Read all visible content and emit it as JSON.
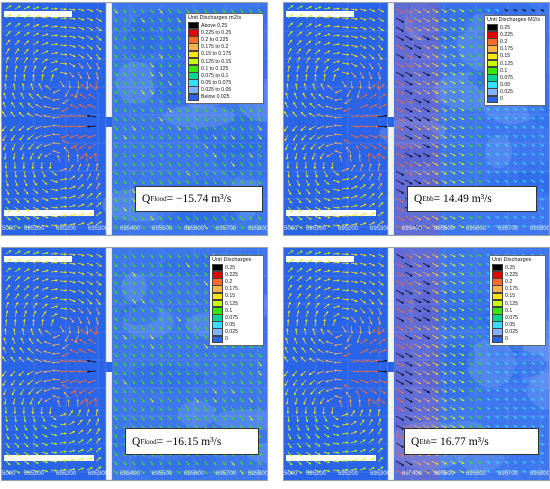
{
  "panels": [
    {
      "id": "top-left",
      "legend": {
        "title": "Unit Discharges m2/s",
        "items": [
          {
            "label": "Above 0.25",
            "color": "#000000"
          },
          {
            "label": "0.225 to 0.25",
            "color": "#e00000"
          },
          {
            "label": "0.2 to 0.225",
            "color": "#ff6a2a"
          },
          {
            "label": "0.175 to 0.2",
            "color": "#ffb347"
          },
          {
            "label": "0.15 to 0.175",
            "color": "#ffe600"
          },
          {
            "label": "0.125 to 0.15",
            "color": "#c8ff00"
          },
          {
            "label": "0.1 to 0.125",
            "color": "#39e600"
          },
          {
            "label": "0.075 to 0.1",
            "color": "#00d68f"
          },
          {
            "label": "0.05 to 0.075",
            "color": "#35e0ff"
          },
          {
            "label": "0.025 to 0.05",
            "color": "#7fb2ff"
          },
          {
            "label": "Below 0.025",
            "color": "#2a64e8"
          }
        ]
      },
      "q_sym": "Q",
      "q_sub": "Flood",
      "q_text": " = −15.74 m³/s",
      "ticks": [
        "5000",
        "695100",
        "695200",
        "695300",
        "695400",
        "695500",
        "695600",
        "695700",
        "695800"
      ]
    },
    {
      "id": "top-right",
      "legend": {
        "title": "Unit Discharges M2/s",
        "items": [
          {
            "label": "0.25",
            "color": "#000000"
          },
          {
            "label": "0.225",
            "color": "#e00000"
          },
          {
            "label": "0.2",
            "color": "#ff6a2a"
          },
          {
            "label": "0.175",
            "color": "#ffb347"
          },
          {
            "label": "0.15",
            "color": "#ffe600"
          },
          {
            "label": "0.125",
            "color": "#c8ff00"
          },
          {
            "label": "0.1",
            "color": "#39e600"
          },
          {
            "label": "0.075",
            "color": "#00d68f"
          },
          {
            "label": "0.05",
            "color": "#35e0ff"
          },
          {
            "label": "0.025",
            "color": "#7fb2ff"
          },
          {
            "label": "0",
            "color": "#2a64e8"
          }
        ]
      },
      "q_sym": "Q",
      "q_sub": "Ebb",
      "q_text": " = 14.49 m³/s",
      "ticks": [
        "5000",
        "695100",
        "695200",
        "695300",
        "695400",
        "695500",
        "695600",
        "695700",
        "695800"
      ]
    },
    {
      "id": "bottom-left",
      "legend": {
        "title": "Unit Discharges",
        "items": [
          {
            "label": "0.25",
            "color": "#000000"
          },
          {
            "label": "0.225",
            "color": "#e00000"
          },
          {
            "label": "0.2",
            "color": "#ff6a2a"
          },
          {
            "label": "0.175",
            "color": "#ffb347"
          },
          {
            "label": "0.15",
            "color": "#ffe600"
          },
          {
            "label": "0.125",
            "color": "#c8ff00"
          },
          {
            "label": "0.1",
            "color": "#39e600"
          },
          {
            "label": "0.075",
            "color": "#00d68f"
          },
          {
            "label": "0.05",
            "color": "#35e0ff"
          },
          {
            "label": "0.025",
            "color": "#7fb2ff"
          },
          {
            "label": "0",
            "color": "#2a64e8"
          }
        ]
      },
      "q_sym": "Q",
      "q_sub": "Flood",
      "q_text": " = −16.15 m³/s",
      "ticks": [
        "5000",
        "695100",
        "695200",
        "695300",
        "695400",
        "695500",
        "695600",
        "695700",
        "695800"
      ]
    },
    {
      "id": "bottom-right",
      "legend": {
        "title": "Unit Discharges",
        "items": [
          {
            "label": "0.25",
            "color": "#000000"
          },
          {
            "label": "0.225",
            "color": "#e00000"
          },
          {
            "label": "0.2",
            "color": "#ff6a2a"
          },
          {
            "label": "0.175",
            "color": "#ffb347"
          },
          {
            "label": "0.15",
            "color": "#ffe600"
          },
          {
            "label": "0.125",
            "color": "#c8ff00"
          },
          {
            "label": "0.1",
            "color": "#39e600"
          },
          {
            "label": "0.075",
            "color": "#00d68f"
          },
          {
            "label": "0.05",
            "color": "#35e0ff"
          },
          {
            "label": "0.025",
            "color": "#7fb2ff"
          },
          {
            "label": "0",
            "color": "#2a64e8"
          }
        ]
      },
      "q_sym": "Q",
      "q_sub": "Ebb",
      "q_text": " = 16.77 m³/s",
      "ticks": [
        "5000",
        "695100",
        "695200",
        "695300",
        "695400",
        "695500",
        "695600",
        "695700",
        "695800"
      ]
    }
  ]
}
